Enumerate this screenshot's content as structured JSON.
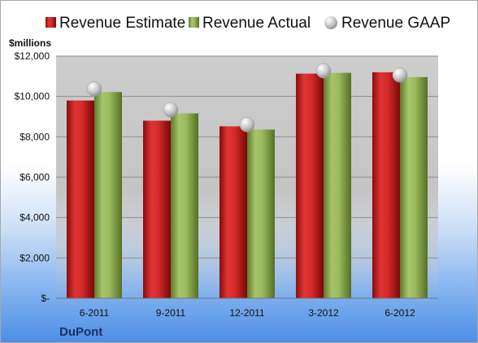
{
  "chart_data": {
    "type": "bar",
    "title": "",
    "unit_label": "$millions",
    "company": "DuPont",
    "xlabel": "",
    "ylabel": "",
    "categories": [
      "6-2011",
      "9-2011",
      "12-2011",
      "3-2012",
      "6-2012"
    ],
    "series": [
      {
        "name": "Revenue Estimate",
        "mark": "bar",
        "color": "#cc1f1f",
        "values": [
          9800,
          8800,
          8520,
          11130,
          11200
        ]
      },
      {
        "name": "Revenue Actual",
        "mark": "bar",
        "color": "#8caa4e",
        "values": [
          10220,
          9160,
          8360,
          11170,
          10960
        ]
      },
      {
        "name": "Revenue GAAP",
        "mark": "marker",
        "color": "#c6c6c6",
        "values": [
          10370,
          9340,
          8600,
          11270,
          11060
        ]
      }
    ],
    "ylim": [
      0,
      12000
    ],
    "yticks": [
      0,
      2000,
      4000,
      6000,
      8000,
      10000,
      12000
    ],
    "ytick_labels": [
      "$-",
      "$2,000",
      "$4,000",
      "$6,000",
      "$8,000",
      "$10,000",
      "$12,000"
    ],
    "grid": true,
    "legend_position": "top",
    "plot_background": "#c8c8c8"
  }
}
